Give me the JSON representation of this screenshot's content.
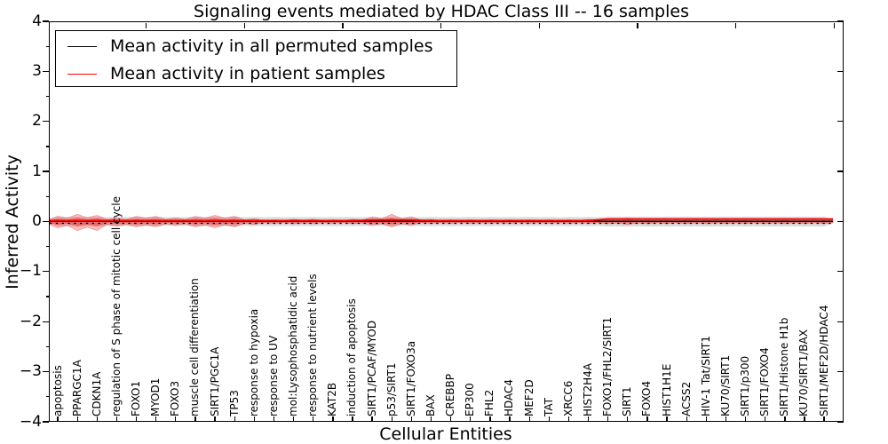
{
  "title": "Signaling events mediated by HDAC Class III -- 16 samples",
  "axes": {
    "ylabel": "Inferred Activity",
    "xlabel": "Cellular Entities",
    "ytick_labels": [
      "4",
      "3",
      "2",
      "1",
      "0",
      "−1",
      "−2",
      "−3",
      "−4"
    ],
    "ylim": [
      -4,
      4
    ]
  },
  "legend": {
    "position": "upper left",
    "items": [
      {
        "label": "Mean activity in all permuted samples",
        "color": "#000000",
        "style": "solid"
      },
      {
        "label": "Mean activity in patient samples",
        "color": "#ff0000",
        "style": "solid"
      }
    ]
  },
  "colors": {
    "patient_line": "#ff0000",
    "permuted_line": "#000000",
    "patient_violin_fill": "rgba(255,0,0,0.26)",
    "patient_violin_core": "rgba(230,20,20,0.38)",
    "patient_violin_edge": "rgba(200,0,0,0.35)",
    "permuted_violin_fill": "rgba(0,0,0,0.14)",
    "zero_line": "#000000"
  },
  "chart_data": {
    "type": "violin",
    "title": "Signaling events mediated by HDAC Class III -- 16 samples",
    "xlabel": "Cellular Entities",
    "ylabel": "Inferred Activity",
    "ylim": [
      -4,
      4
    ],
    "grid": false,
    "legend_position": "upper left",
    "categories": [
      "apoptosis",
      "PPARGC1A",
      "CDKN1A",
      "regulation of S phase of mitotic cell cycle",
      "FOXO1",
      "MYOD1",
      "FOXO3",
      "muscle cell differentiation",
      "SIRT1/PGC1A",
      "TP53",
      "response to hypoxia",
      "response to UV",
      "mol:Lysophosphatidic acid",
      "response to nutrient levels",
      "KAT2B",
      "induction of apoptosis",
      "SIRT1/PCAF/MYOD",
      "p53/SIRT1",
      "SIRT1/FOXO3a",
      "BAX",
      "CREBBP",
      "EP300",
      "FHL2",
      "HDAC4",
      "MEF2D",
      "TAT",
      "XRCC6",
      "HIST2H4A",
      "FOXO1/FHL2/SIRT1",
      "SIRT1",
      "FOXO4",
      "HIST1H1E",
      "ACSS2",
      "HIV-1 Tat/SIRT1",
      "KU70/SIRT1",
      "SIRT1/p300",
      "SIRT1/FOXO4",
      "SIRT1/Histone H1b",
      "KU70/SIRT1/BAX",
      "SIRT1/MEF2D/HDAC4"
    ],
    "series": [
      {
        "name": "Mean activity in all permuted samples",
        "color": "#000000",
        "values": [
          0,
          0,
          0,
          0,
          0,
          0,
          0,
          0,
          0,
          0,
          0,
          0,
          0,
          0,
          0,
          0,
          0,
          0,
          0,
          0,
          0,
          0,
          0,
          0,
          0,
          0,
          0,
          0,
          0,
          0,
          0,
          0,
          0,
          0,
          0,
          0,
          0,
          0,
          0,
          0
        ]
      },
      {
        "name": "Mean activity in patient samples",
        "color": "#ff0000",
        "values": [
          0.02,
          0.02,
          0.02,
          0.02,
          0.02,
          0.02,
          0.02,
          0.02,
          0.02,
          0.02,
          0.02,
          0.02,
          0.02,
          0.02,
          0.02,
          0.02,
          0.03,
          0.03,
          0.03,
          0.02,
          0.02,
          0.02,
          0.02,
          0.02,
          0.02,
          0.02,
          0.02,
          0.02,
          0.05,
          0.05,
          0.05,
          0.05,
          0.05,
          0.05,
          0.05,
          0.05,
          0.05,
          0.05,
          0.05,
          0.05
        ]
      }
    ],
    "violins": {
      "patient_halfwidth_up": [
        0.105,
        0.145,
        0.125,
        0.07,
        0.105,
        0.105,
        0.07,
        0.105,
        0.125,
        0.105,
        0.055,
        0.035,
        0.045,
        0.045,
        0.035,
        0.045,
        0.09,
        0.145,
        0.09,
        0.045,
        0.035,
        0.035,
        0.035,
        0.035,
        0.035,
        0.035,
        0.035,
        0.045,
        0.06,
        0.07,
        0.06,
        0.055,
        0.055,
        0.055,
        0.055,
        0.055,
        0.055,
        0.055,
        0.055,
        0.055
      ],
      "patient_halfwidth_down": [
        0.125,
        0.18,
        0.18,
        0.09,
        0.105,
        0.105,
        0.07,
        0.105,
        0.125,
        0.105,
        0.055,
        0.035,
        0.045,
        0.045,
        0.035,
        0.045,
        0.07,
        0.105,
        0.07,
        0.035,
        0.035,
        0.035,
        0.035,
        0.035,
        0.035,
        0.035,
        0.035,
        0.035,
        0.045,
        0.055,
        0.045,
        0.04,
        0.04,
        0.04,
        0.04,
        0.04,
        0.04,
        0.04,
        0.04,
        0.04
      ],
      "permuted_halfwidth": [
        0.09,
        0.09,
        0.09,
        0.09,
        0.09,
        0.09,
        0.09,
        0.09,
        0.09,
        0.09,
        0.09,
        0.09,
        0.09,
        0.09,
        0.09,
        0.09,
        0.09,
        0.09,
        0.09,
        0.09,
        0.09,
        0.09,
        0.09,
        0.09,
        0.09,
        0.09,
        0.09,
        0.09,
        0.1,
        0.1,
        0.1,
        0.1,
        0.1,
        0.1,
        0.1,
        0.1,
        0.1,
        0.1,
        0.1,
        0.1
      ]
    },
    "zero_reference_line": {
      "y": 0,
      "style": "dotted",
      "color": "#000000"
    }
  }
}
